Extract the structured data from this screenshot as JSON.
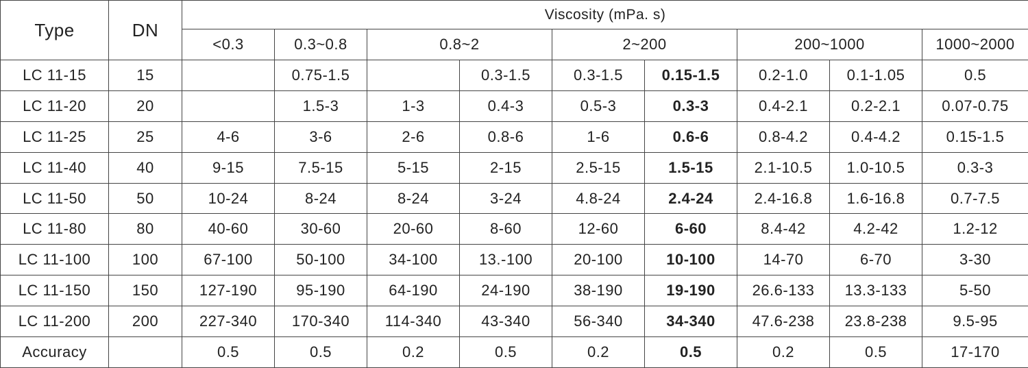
{
  "header": {
    "type": "Type",
    "dn": "DN",
    "viscosity": "Viscosity (mPa. s)",
    "ranges": [
      "<0.3",
      "0.3~0.8",
      "0.8~2",
      "2~200",
      "200~1000",
      "1000~2000"
    ]
  },
  "table": {
    "rows": [
      [
        "LC 11-15",
        "15",
        null,
        "0.75-1.5",
        null,
        "0.3-1.5",
        "0.3-1.5",
        "0.15-1.5",
        "0.2-1.0",
        "0.1-1.05",
        "0.5"
      ],
      [
        "LC 11-20",
        "20",
        null,
        "1.5-3",
        "1-3",
        "0.4-3",
        "0.5-3",
        "0.3-3",
        "0.4-2.1",
        "0.2-2.1",
        "0.07-0.75"
      ],
      [
        "LC 11-25",
        "25",
        "4-6",
        "3-6",
        "2-6",
        "0.8-6",
        "1-6",
        "0.6-6",
        "0.8-4.2",
        "0.4-4.2",
        "0.15-1.5"
      ],
      [
        "LC 11-40",
        "40",
        "9-15",
        "7.5-15",
        "5-15",
        "2-15",
        "2.5-15",
        "1.5-15",
        "2.1-10.5",
        "1.0-10.5",
        "0.3-3"
      ],
      [
        "LC 11-50",
        "50",
        "10-24",
        "8-24",
        "8-24",
        "3-24",
        "4.8-24",
        "2.4-24",
        "2.4-16.8",
        "1.6-16.8",
        "0.7-7.5"
      ],
      [
        "LC 11-80",
        "80",
        "40-60",
        "30-60",
        "20-60",
        "8-60",
        "12-60",
        "6-60",
        "8.4-42",
        "4.2-42",
        "1.2-12"
      ],
      [
        "LC 11-100",
        "100",
        "67-100",
        "50-100",
        "34-100",
        "13.-100",
        "20-100",
        "10-100",
        "14-70",
        "6-70",
        "3-30"
      ],
      [
        "LC 11-150",
        "150",
        "127-190",
        "95-190",
        "64-190",
        "24-190",
        "38-190",
        "19-190",
        "26.6-133",
        "13.3-133",
        "5-50"
      ],
      [
        "LC 11-200",
        "200",
        "227-340",
        "170-340",
        "114-340",
        "43-340",
        "56-340",
        "34-340",
        "47.6-238",
        "23.8-238",
        "9.5-95"
      ],
      [
        "Accuracy",
        null,
        "0.5",
        "0.5",
        "0.2",
        "0.5",
        "0.2",
        "0.5",
        "0.2",
        "0.5",
        "17-170"
      ]
    ]
  }
}
